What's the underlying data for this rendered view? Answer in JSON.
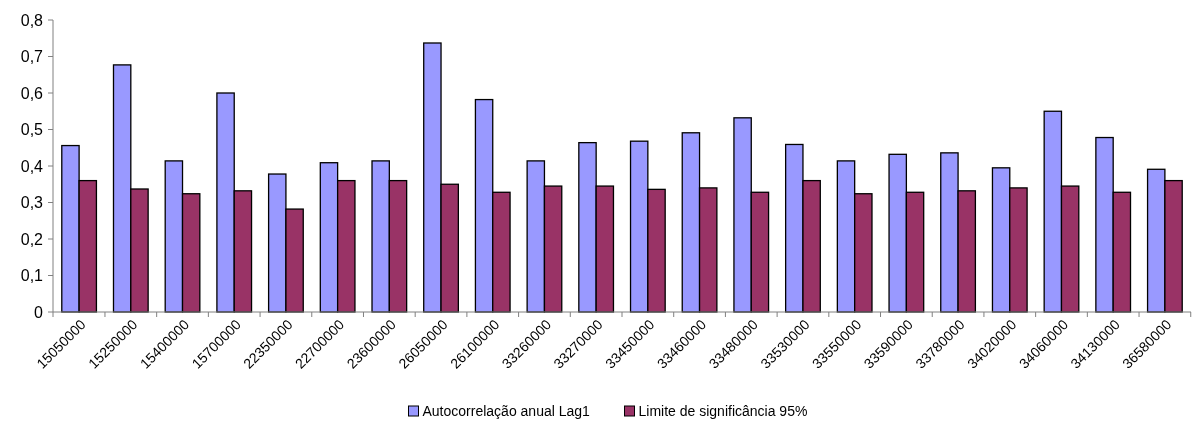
{
  "chart_data": {
    "type": "bar",
    "categories": [
      "15050000",
      "15250000",
      "15400000",
      "15700000",
      "22350000",
      "22700000",
      "23600000",
      "26050000",
      "26100000",
      "33260000",
      "33270000",
      "33450000",
      "33460000",
      "33480000",
      "33530000",
      "33550000",
      "33590000",
      "33780000",
      "34020000",
      "34060000",
      "34130000",
      "36580000"
    ],
    "series": [
      {
        "name": "Autocorrelação anual Lag1",
        "color": "#9999ff",
        "values": [
          0.456,
          0.677,
          0.414,
          0.6,
          0.378,
          0.409,
          0.414,
          0.737,
          0.582,
          0.414,
          0.464,
          0.468,
          0.491,
          0.532,
          0.459,
          0.414,
          0.432,
          0.436,
          0.395,
          0.55,
          0.478,
          0.391
        ]
      },
      {
        "name": "Limite de significância 95%",
        "color": "#993366",
        "values": [
          0.36,
          0.337,
          0.324,
          0.332,
          0.282,
          0.36,
          0.36,
          0.35,
          0.328,
          0.345,
          0.345,
          0.336,
          0.34,
          0.328,
          0.36,
          0.324,
          0.328,
          0.332,
          0.34,
          0.345,
          0.328,
          0.36
        ]
      }
    ],
    "ylim": [
      0,
      0.8
    ],
    "yticks": [
      {
        "value": 0,
        "label": "0"
      },
      {
        "value": 0.1,
        "label": "0,1"
      },
      {
        "value": 0.2,
        "label": "0,2"
      },
      {
        "value": 0.3,
        "label": "0,3"
      },
      {
        "value": 0.4,
        "label": "0,4"
      },
      {
        "value": 0.5,
        "label": "0,5"
      },
      {
        "value": 0.6,
        "label": "0,6"
      },
      {
        "value": 0.7,
        "label": "0,7"
      },
      {
        "value": 0.8,
        "label": "0,8"
      }
    ],
    "grid": false,
    "legend": "bottom"
  }
}
